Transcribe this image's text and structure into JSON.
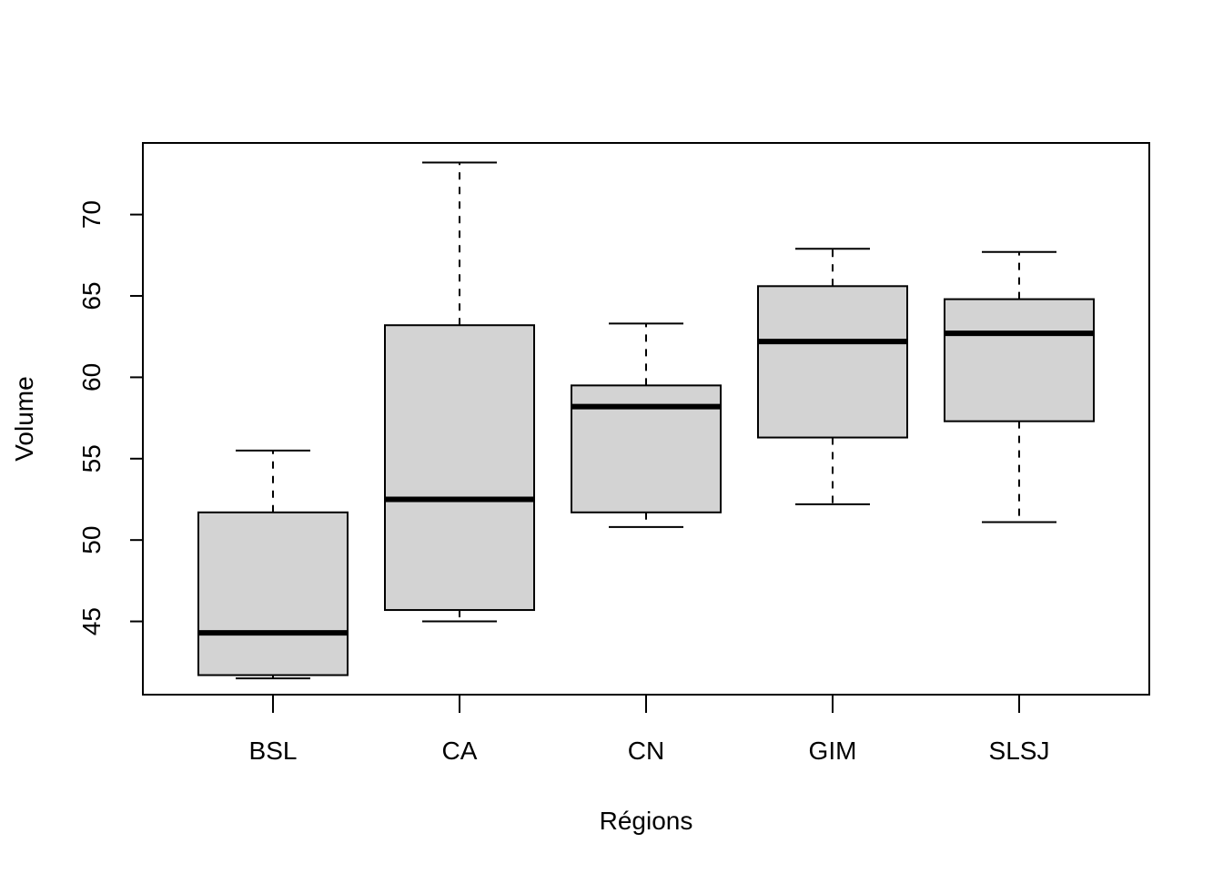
{
  "chart_data": {
    "type": "boxplot",
    "title": "",
    "xlabel": "Régions",
    "ylabel": "Volume",
    "categories": [
      "BSL",
      "CA",
      "CN",
      "GIM",
      "SLSJ"
    ],
    "boxes": [
      {
        "category": "BSL",
        "whisker_low": 41.5,
        "q1": 41.7,
        "median": 44.3,
        "q3": 51.7,
        "whisker_high": 55.5
      },
      {
        "category": "CA",
        "whisker_low": 45.0,
        "q1": 45.7,
        "median": 52.5,
        "q3": 63.2,
        "whisker_high": 73.2
      },
      {
        "category": "CN",
        "whisker_low": 50.8,
        "q1": 51.7,
        "median": 58.2,
        "q3": 59.5,
        "whisker_high": 63.3
      },
      {
        "category": "GIM",
        "whisker_low": 52.2,
        "q1": 56.3,
        "median": 62.2,
        "q3": 65.6,
        "whisker_high": 67.9
      },
      {
        "category": "SLSJ",
        "whisker_low": 51.1,
        "q1": 57.3,
        "median": 62.7,
        "q3": 64.8,
        "whisker_high": 67.7
      }
    ],
    "y_ticks": [
      45,
      50,
      55,
      60,
      65,
      70
    ],
    "ylim": [
      40.5,
      74.4
    ],
    "grid": false,
    "legend": "none",
    "colors": {
      "box_fill": "#d3d3d3",
      "stroke": "#000000",
      "background": "#ffffff"
    }
  }
}
